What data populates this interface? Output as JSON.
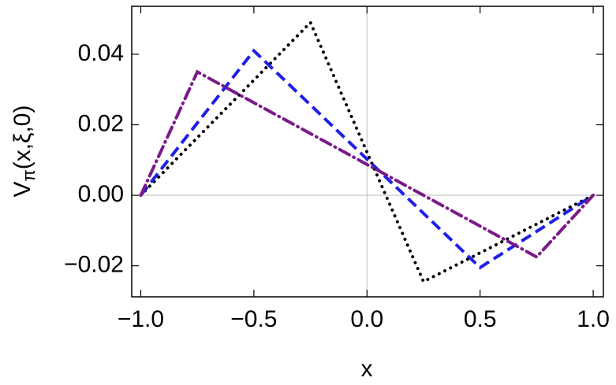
{
  "chart_data": {
    "type": "line",
    "xlabel": "x",
    "ylabel": [
      "V",
      "π",
      "(x,ξ,0)"
    ],
    "series": [
      {
        "color": "#000000",
        "style": "dotted",
        "x": [
          -1,
          -0.25,
          0.25,
          1
        ],
        "values": [
          0,
          0.049,
          -0.0245,
          0
        ]
      },
      {
        "color": "#1f1fe6",
        "style": "dashed",
        "x": [
          -1,
          -0.5,
          0.5,
          1
        ],
        "values": [
          0,
          0.041,
          -0.0205,
          0
        ]
      },
      {
        "color": "#7b1a88",
        "style": "dashdot",
        "x": [
          -1,
          -0.75,
          0.75,
          1
        ],
        "values": [
          0,
          0.035,
          -0.0175,
          0
        ]
      }
    ],
    "xlim": [
      -1.04,
      1.045
    ],
    "ylim": [
      -0.0288,
      0.0536
    ],
    "xticks": [
      {
        "value": -1,
        "label": "−1.0"
      },
      {
        "value": -0.5,
        "label": "−0.5"
      },
      {
        "value": 0,
        "label": "0.0"
      },
      {
        "value": 0.5,
        "label": "0.5"
      },
      {
        "value": 1,
        "label": "1.0"
      }
    ],
    "yticks": [
      {
        "value": -0.02,
        "label": "−0.02"
      },
      {
        "value": 0,
        "label": "0.00"
      },
      {
        "value": 0.02,
        "label": "0.02"
      },
      {
        "value": 0.04,
        "label": "0.04"
      }
    ],
    "axes_lines": true
  }
}
